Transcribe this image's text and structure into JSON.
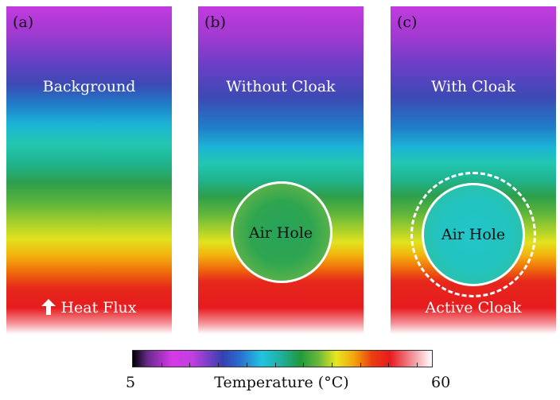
{
  "panels": [
    {
      "tag": "(a)",
      "title": "Background",
      "bottom_label": "Heat Flux"
    },
    {
      "tag": "(b)",
      "title": "Without Cloak",
      "hole_label": "Air Hole"
    },
    {
      "tag": "(c)",
      "title": "With Cloak",
      "hole_label": "Air Hole",
      "bottom_label": "Active Cloak"
    }
  ],
  "colorbar": {
    "min_label": "5",
    "max_label": "60",
    "axis_label": "Temperature (°C)",
    "colormap": [
      "#000000",
      "#d43ae6",
      "#3540b0",
      "#22c4e0",
      "#1f9a3c",
      "#e8e620",
      "#ec3d12",
      "#ffffff"
    ]
  },
  "icons": {
    "heat_flux_arrow": "up-arrow-icon"
  }
}
